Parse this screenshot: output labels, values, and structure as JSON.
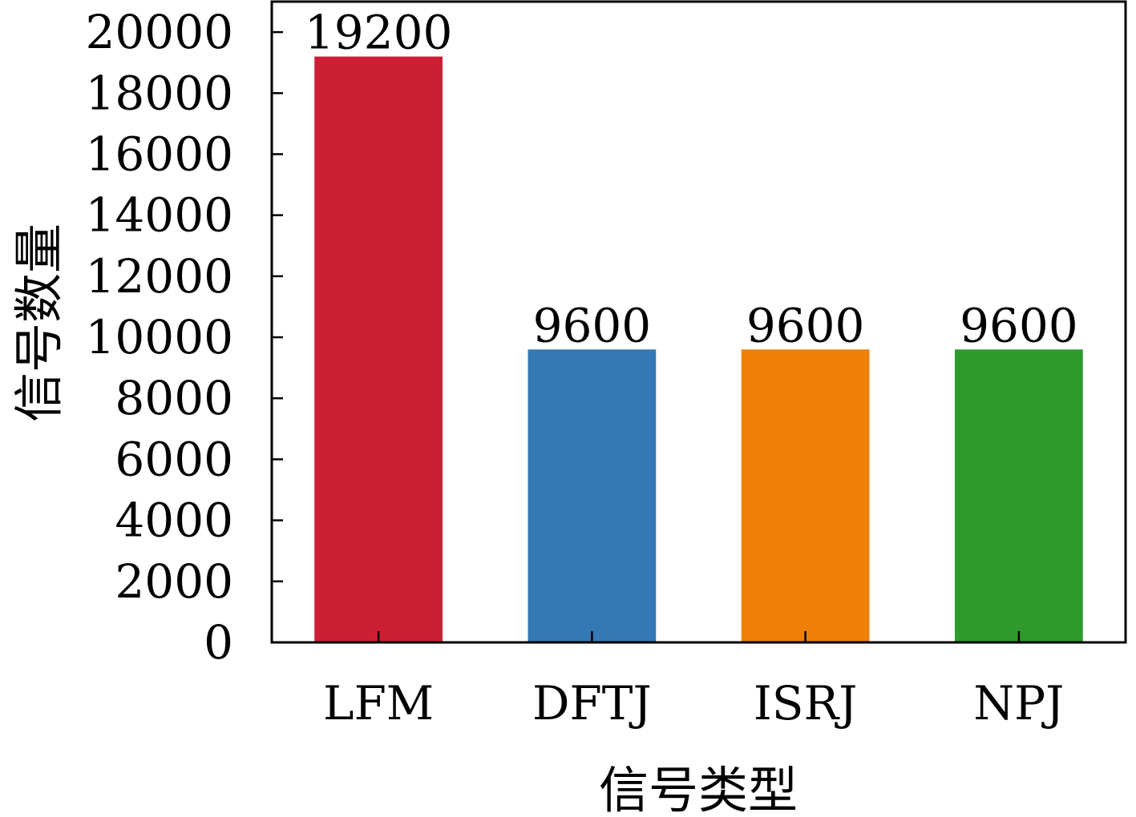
{
  "chart_data": {
    "type": "bar",
    "categories": [
      "LFM",
      "DFTJ",
      "ISRJ",
      "NPJ"
    ],
    "values": [
      19200,
      9600,
      9600,
      9600
    ],
    "data_labels": [
      "19200",
      "9600",
      "9600",
      "9600"
    ],
    "colors": [
      "#cd1f34",
      "#3479b5",
      "#f07f0a",
      "#2e9a2c"
    ],
    "title": "",
    "xlabel": "信号类型",
    "ylabel": "信号数量",
    "ylim": [
      0,
      21000
    ],
    "yticks": [
      0,
      2000,
      4000,
      6000,
      8000,
      10000,
      12000,
      14000,
      16000,
      18000,
      20000
    ],
    "ytick_labels": [
      "0",
      "2000",
      "4000",
      "6000",
      "8000",
      "10000",
      "12000",
      "14000",
      "16000",
      "18000",
      "20000"
    ],
    "grid": false
  }
}
